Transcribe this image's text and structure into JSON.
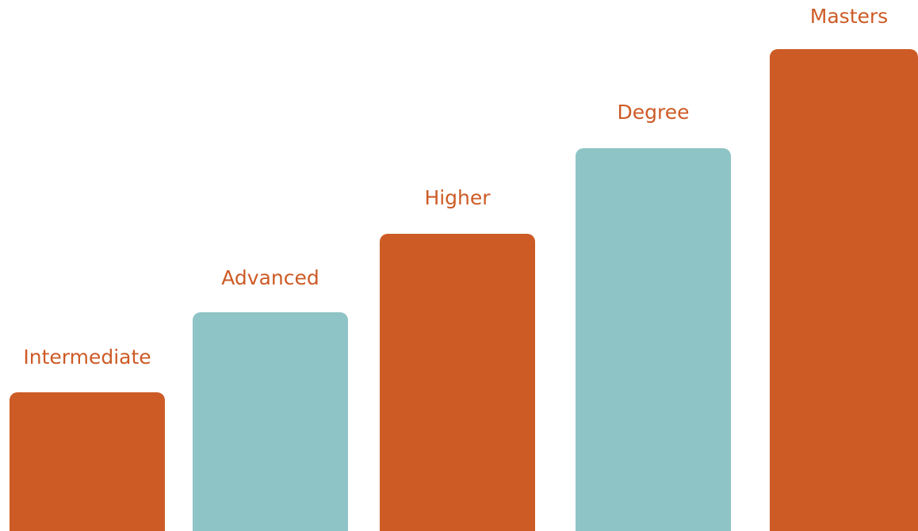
{
  "colors": {
    "orange": "#cd5b26",
    "teal": "#8ec4c5",
    "label": "#cd5b26"
  },
  "steps": [
    {
      "label": "Intermediate",
      "color": "orange"
    },
    {
      "label": "Advanced",
      "color": "teal"
    },
    {
      "label": "Higher",
      "color": "orange"
    },
    {
      "label": "Degree",
      "color": "teal"
    },
    {
      "label": "Masters",
      "color": "orange"
    }
  ]
}
